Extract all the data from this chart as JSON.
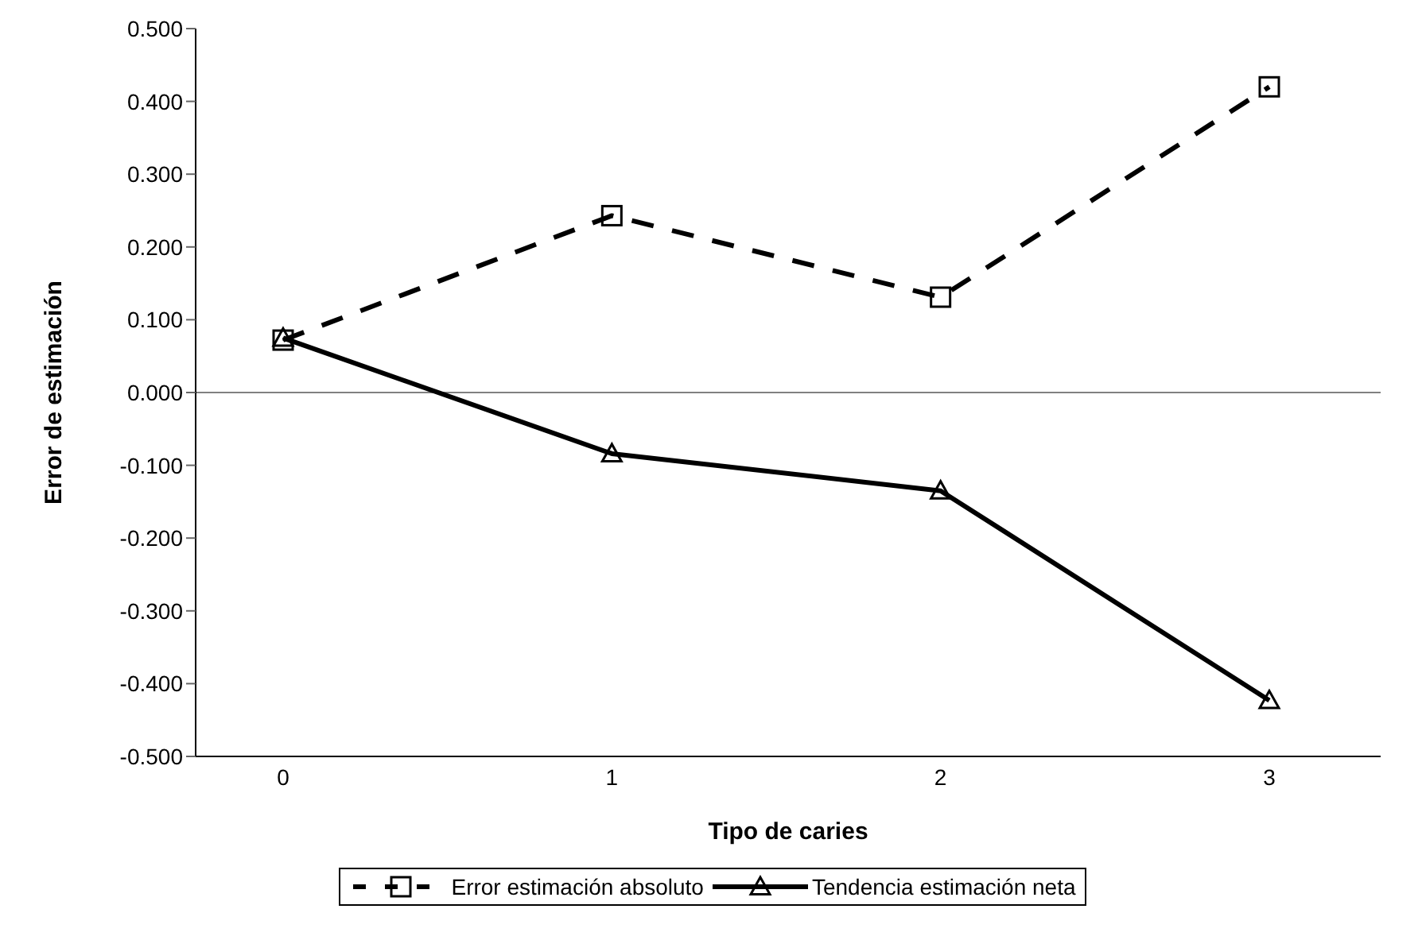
{
  "chart_data": {
    "type": "line",
    "xlabel": "Tipo de caries",
    "ylabel": "Error de estimación",
    "categories": [
      "0",
      "1",
      "2",
      "3"
    ],
    "series": [
      {
        "name": "Error estimación absoluto",
        "color": "#000000",
        "values": [
          0.072,
          0.243,
          0.131,
          0.42
        ],
        "marker": "square",
        "line_style": "dashed"
      },
      {
        "name": "Tendencia estimación neta",
        "color": "#000000",
        "values": [
          0.075,
          -0.084,
          -0.135,
          -0.423
        ],
        "marker": "triangle",
        "line_style": "solid"
      }
    ],
    "ylim": [
      -0.5,
      0.5
    ],
    "yticks": [
      {
        "value": -0.5,
        "label": "-0.500"
      },
      {
        "value": -0.4,
        "label": "-0.400"
      },
      {
        "value": -0.3,
        "label": "-0.300"
      },
      {
        "value": -0.2,
        "label": "-0.200"
      },
      {
        "value": -0.1,
        "label": "-0.100"
      },
      {
        "value": 0,
        "label": "0.000"
      },
      {
        "value": 0.1,
        "label": "0.100"
      },
      {
        "value": 0.2,
        "label": "0.200"
      },
      {
        "value": 0.3,
        "label": "0.300"
      },
      {
        "value": 0.4,
        "label": "0.400"
      },
      {
        "value": 0.5,
        "label": "0.500"
      }
    ],
    "ref_lines": [
      {
        "axis": "y",
        "value": 0,
        "color": "#808080"
      }
    ],
    "grid": false,
    "legend": "bottom"
  }
}
